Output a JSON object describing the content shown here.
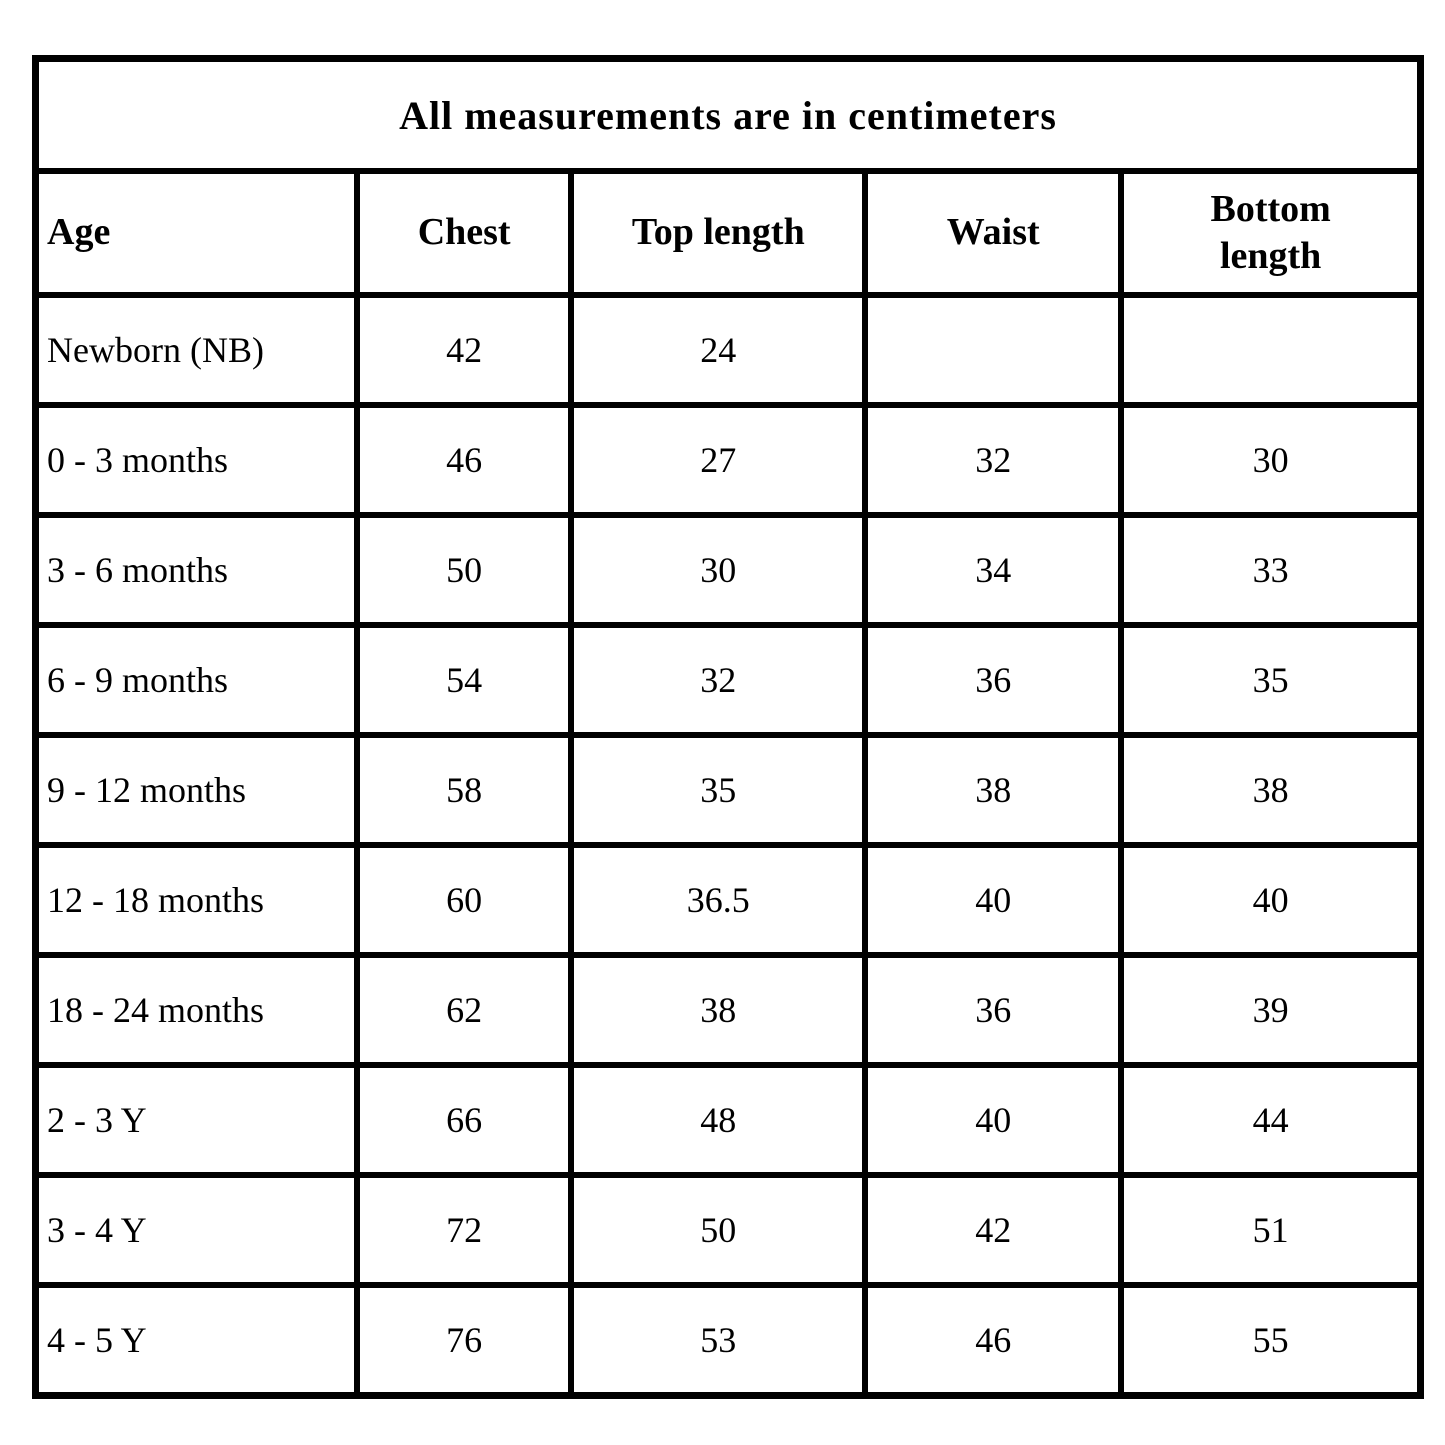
{
  "title": "All measurements are in centimeters",
  "table": {
    "column_keys": [
      "age",
      "chest",
      "top_length",
      "waist",
      "bottom_length"
    ],
    "columns": [
      "Age",
      "Chest",
      "Top length",
      "Waist",
      "Bottom length"
    ],
    "rows": [
      {
        "age": "Newborn (NB)",
        "chest": "42",
        "top_length": "24",
        "waist": "",
        "bottom_length": ""
      },
      {
        "age": "0 - 3 months",
        "chest": "46",
        "top_length": "27",
        "waist": "32",
        "bottom_length": "30"
      },
      {
        "age": "3 - 6 months",
        "chest": "50",
        "top_length": "30",
        "waist": "34",
        "bottom_length": "33"
      },
      {
        "age": "6 - 9 months",
        "chest": "54",
        "top_length": "32",
        "waist": "36",
        "bottom_length": "35"
      },
      {
        "age": "9 - 12 months",
        "chest": "58",
        "top_length": "35",
        "waist": "38",
        "bottom_length": "38"
      },
      {
        "age": "12 - 18 months",
        "chest": "60",
        "top_length": "36.5",
        "waist": "40",
        "bottom_length": "40"
      },
      {
        "age": "18 - 24 months",
        "chest": "62",
        "top_length": "38",
        "waist": "36",
        "bottom_length": "39"
      },
      {
        "age": "2 - 3 Y",
        "chest": "66",
        "top_length": "48",
        "waist": "40",
        "bottom_length": "44"
      },
      {
        "age": "3 - 4 Y",
        "chest": "72",
        "top_length": "50",
        "waist": "42",
        "bottom_length": "51"
      },
      {
        "age": "4 - 5 Y",
        "chest": "76",
        "top_length": "53",
        "waist": "46",
        "bottom_length": "55"
      }
    ]
  },
  "colors": {
    "border": "#000000",
    "background": "#ffffff",
    "text": "#000000"
  }
}
